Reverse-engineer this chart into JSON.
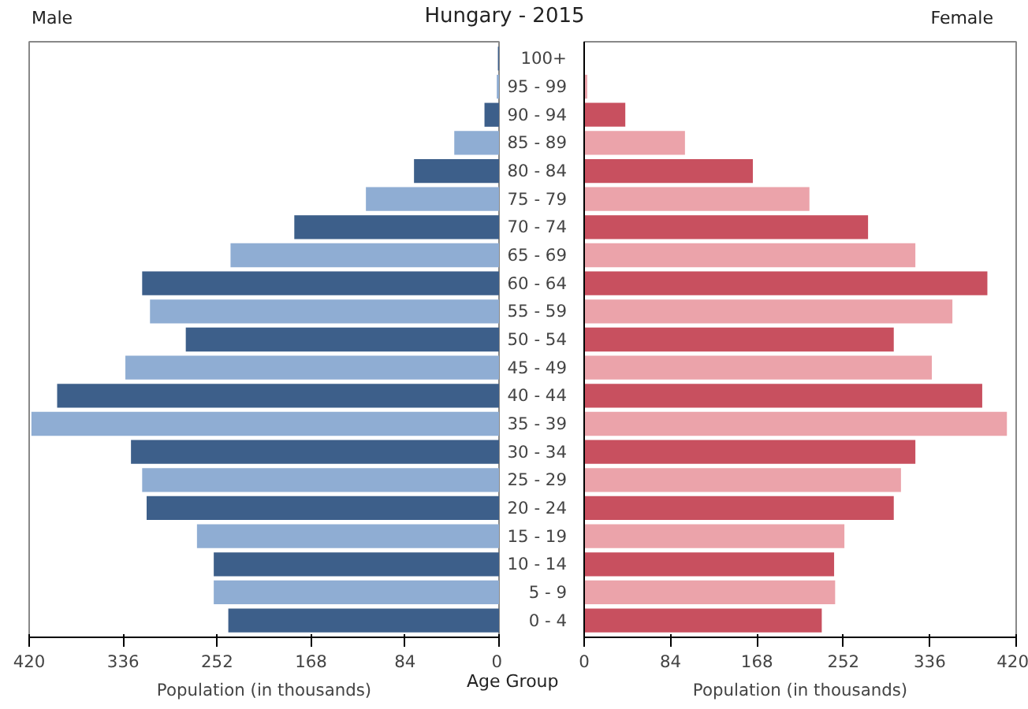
{
  "chart_data": [
    {
      "type": "bar",
      "orientation": "horizontal",
      "title": "Male",
      "xlabel": "Population (in thousands)",
      "annotations": [
        "Hungary - 2015"
      ],
      "categories": [
        "100+",
        "95 - 99",
        "90 - 94",
        "85 - 89",
        "80 - 84",
        "75 - 79",
        "70 - 74",
        "65 - 69",
        "60 - 64",
        "55 - 59",
        "50 - 54",
        "45 - 49",
        "40 - 44",
        "35 - 39",
        "30 - 34",
        "25 - 29",
        "20 - 24",
        "15 - 19",
        "10 - 14",
        "5 - 9",
        "0 - 4"
      ],
      "values": [
        1,
        2,
        13,
        40,
        76,
        119,
        183,
        240,
        319,
        312,
        280,
        334,
        395,
        418,
        329,
        319,
        315,
        270,
        255,
        255,
        242
      ],
      "colors": [
        "#3d5f8a",
        "#8fadd3",
        "#3d5f8a",
        "#8fadd3",
        "#3d5f8a",
        "#8fadd3",
        "#3d5f8a",
        "#8fadd3",
        "#3d5f8a",
        "#8fadd3",
        "#3d5f8a",
        "#8fadd3",
        "#3d5f8a",
        "#8fadd3",
        "#3d5f8a",
        "#8fadd3",
        "#3d5f8a",
        "#8fadd3",
        "#3d5f8a",
        "#8fadd3",
        "#3d5f8a"
      ],
      "xlim": [
        420,
        0
      ],
      "xticks": [
        420,
        336,
        252,
        168,
        84,
        0
      ],
      "tick_labels": "x",
      "grid": false
    },
    {
      "type": "bar",
      "orientation": "horizontal",
      "title": "Female",
      "xlabel": "Population (in thousands)",
      "annotations": [
        "Age Group"
      ],
      "categories": [
        "100+",
        "95 - 99",
        "90 - 94",
        "85 - 89",
        "80 - 84",
        "75 - 79",
        "70 - 74",
        "65 - 69",
        "60 - 64",
        "55 - 59",
        "50 - 54",
        "45 - 49",
        "40 - 44",
        "35 - 39",
        "30 - 34",
        "25 - 29",
        "20 - 24",
        "15 - 19",
        "10 - 14",
        "5 - 9",
        "0 - 4"
      ],
      "values": [
        null,
        3,
        40,
        98,
        164,
        219,
        276,
        322,
        392,
        358,
        301,
        338,
        387,
        411,
        322,
        308,
        301,
        253,
        243,
        244,
        231
      ],
      "colors": [
        "#c8505f",
        "#eba3aa",
        "#c8505f",
        "#eba3aa",
        "#c8505f",
        "#eba3aa",
        "#c8505f",
        "#eba3aa",
        "#c8505f",
        "#eba3aa",
        "#c8505f",
        "#eba3aa",
        "#c8505f",
        "#eba3aa",
        "#c8505f",
        "#eba3aa",
        "#c8505f",
        "#eba3aa",
        "#c8505f",
        "#eba3aa",
        "#c8505f"
      ],
      "xlim": [
        0,
        420
      ],
      "xticks": [
        0,
        84,
        168,
        252,
        336,
        420
      ],
      "grid": false
    }
  ]
}
